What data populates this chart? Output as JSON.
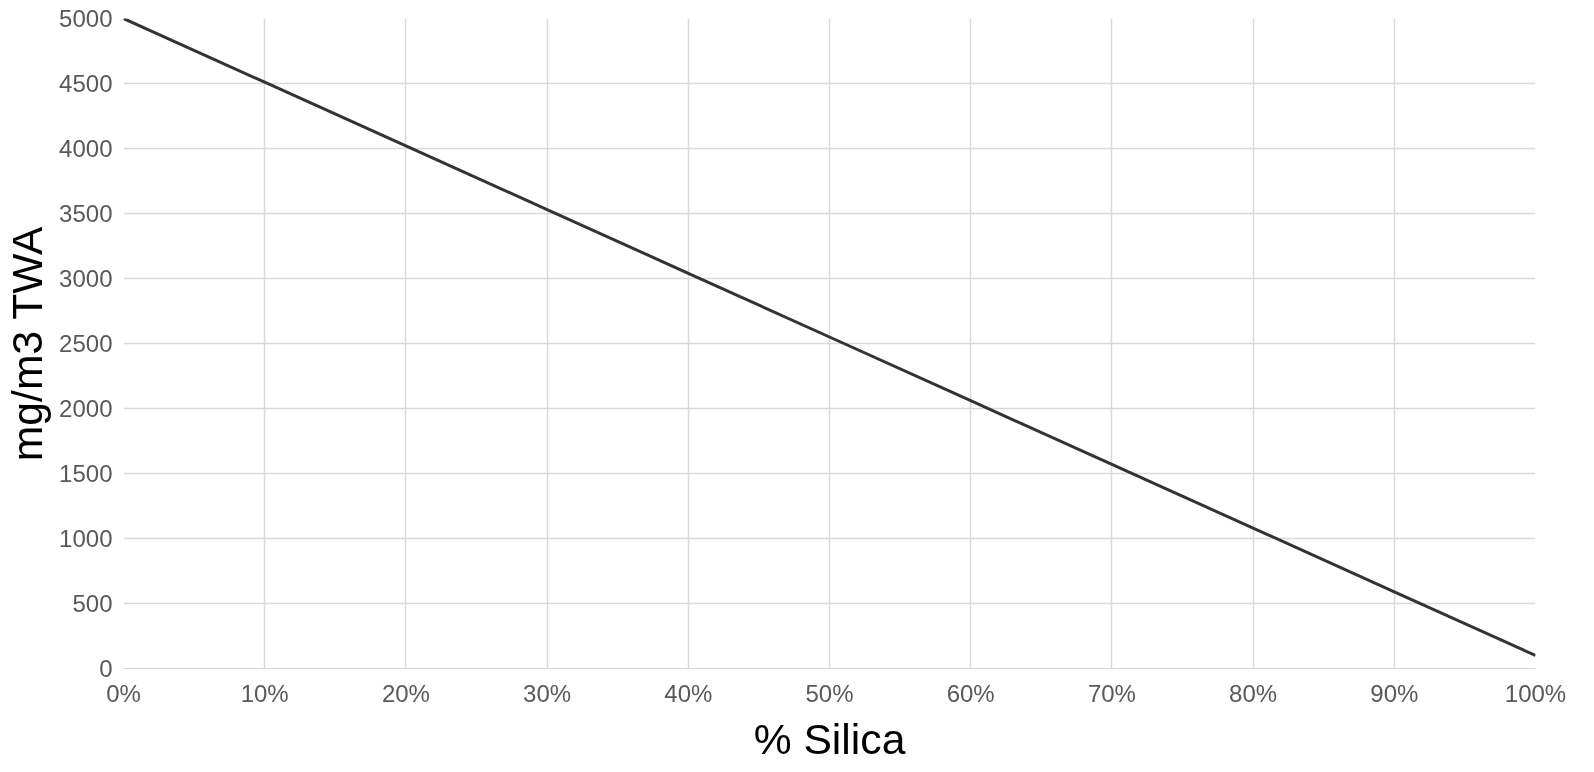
{
  "chart_data": {
    "type": "line",
    "xlabel": "% Silica",
    "ylabel": "mg/m3 TWA",
    "x": [
      0,
      10,
      20,
      30,
      40,
      50,
      60,
      70,
      80,
      90,
      100
    ],
    "series": [
      {
        "color": "#333333",
        "values": [
          5000,
          4510,
          4020,
          3530,
          3040,
          2550,
          2060,
          1570,
          1080,
          590,
          100
        ]
      }
    ],
    "xlim": [
      0,
      100
    ],
    "ylim": [
      0,
      5000
    ],
    "xticks": [
      {
        "value": 0,
        "label": "0%"
      },
      {
        "value": 10,
        "label": "10%"
      },
      {
        "value": 20,
        "label": "20%"
      },
      {
        "value": 30,
        "label": "30%"
      },
      {
        "value": 40,
        "label": "40%"
      },
      {
        "value": 50,
        "label": "50%"
      },
      {
        "value": 60,
        "label": "60%"
      },
      {
        "value": 70,
        "label": "70%"
      },
      {
        "value": 80,
        "label": "80%"
      },
      {
        "value": 90,
        "label": "90%"
      },
      {
        "value": 100,
        "label": "100%"
      }
    ],
    "yticks": [
      0,
      500,
      1000,
      1500,
      2000,
      2500,
      3000,
      3500,
      4000,
      4500,
      5000
    ],
    "grid": true,
    "line_style": "solid"
  }
}
